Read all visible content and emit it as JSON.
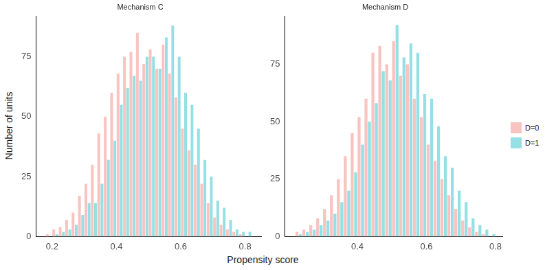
{
  "x_label": "Propensity score",
  "y_label": "Number of units",
  "chart_data": [
    {
      "type": "bar",
      "title": "Mechanism C",
      "bins": [
        0.18,
        0.2,
        0.22,
        0.24,
        0.26,
        0.28,
        0.3,
        0.32,
        0.34,
        0.36,
        0.38,
        0.4,
        0.42,
        0.44,
        0.46,
        0.48,
        0.5,
        0.52,
        0.54,
        0.56,
        0.58,
        0.6,
        0.62,
        0.64,
        0.66,
        0.68,
        0.7,
        0.72,
        0.74,
        0.76,
        0.78,
        0.8,
        0.82
      ],
      "series": [
        {
          "name": "D=0",
          "color": "#f8c3c0",
          "values": [
            1,
            3,
            4,
            7,
            10,
            17,
            22,
            30,
            43,
            50,
            60,
            68,
            75,
            77,
            85,
            72,
            78,
            70,
            80,
            68,
            58,
            45,
            36,
            30,
            22,
            14,
            8,
            5,
            3,
            2,
            1,
            0
          ]
        },
        {
          "name": "D=1",
          "color": "#94e0e4",
          "values": [
            0,
            1,
            2,
            3,
            5,
            9,
            14,
            14,
            22,
            32,
            40,
            55,
            62,
            67,
            65,
            75,
            75,
            70,
            83,
            88,
            75,
            60,
            55,
            45,
            32,
            25,
            15,
            12,
            7,
            3,
            2,
            2
          ]
        }
      ],
      "xlim": [
        0.15,
        0.85
      ],
      "xticks": [
        0.2,
        0.4,
        0.6,
        0.8
      ],
      "ylim": [
        0,
        92
      ],
      "yticks": [
        0,
        25,
        50,
        75
      ],
      "grid": false
    },
    {
      "type": "bar",
      "title": "Mechanism D",
      "bins": [
        0.22,
        0.24,
        0.26,
        0.28,
        0.3,
        0.32,
        0.34,
        0.36,
        0.38,
        0.4,
        0.42,
        0.44,
        0.46,
        0.48,
        0.5,
        0.52,
        0.54,
        0.56,
        0.58,
        0.6,
        0.62,
        0.64,
        0.66,
        0.68,
        0.7,
        0.72,
        0.74,
        0.76,
        0.78,
        0.8
      ],
      "series": [
        {
          "name": "D=0",
          "color": "#f8c3c0",
          "values": [
            2,
            3,
            5,
            8,
            12,
            18,
            25,
            35,
            45,
            52,
            60,
            80,
            83,
            75,
            85,
            70,
            75,
            60,
            52,
            40,
            33,
            25,
            18,
            12,
            7,
            4,
            2,
            1,
            0
          ]
        },
        {
          "name": "D=1",
          "color": "#94e0e4",
          "values": [
            1,
            2,
            3,
            5,
            7,
            10,
            15,
            20,
            28,
            40,
            50,
            58,
            72,
            68,
            92,
            78,
            84,
            80,
            62,
            60,
            48,
            35,
            30,
            20,
            15,
            8,
            5,
            3,
            1
          ]
        }
      ],
      "xlim": [
        0.19,
        0.82
      ],
      "xticks": [
        0.4,
        0.6,
        0.8
      ],
      "ylim": [
        0,
        96
      ],
      "yticks": [
        0,
        25,
        50,
        75
      ],
      "grid": false
    }
  ]
}
